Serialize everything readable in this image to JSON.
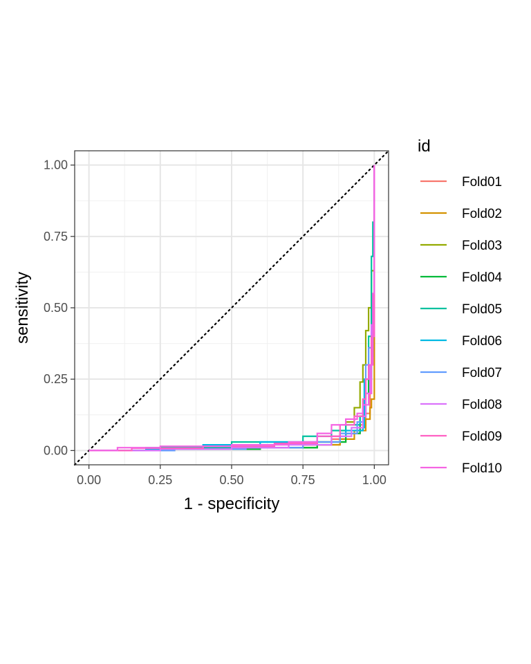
{
  "chart_data": {
    "type": "line",
    "title": "",
    "xlabel": "1 - specificity",
    "ylabel": "sensitivity",
    "xlim": [
      -0.05,
      1.05
    ],
    "ylim": [
      -0.05,
      1.05
    ],
    "x_ticks": [
      "0.00",
      "0.25",
      "0.50",
      "0.75",
      "1.00"
    ],
    "y_ticks": [
      "0.00",
      "0.25",
      "0.50",
      "0.75",
      "1.00"
    ],
    "grid": true,
    "reference_line": {
      "style": "dotted",
      "from": [
        0,
        0
      ],
      "to": [
        1,
        1
      ]
    },
    "legend": {
      "title": "id",
      "position": "right"
    },
    "series": [
      {
        "name": "Fold01",
        "color": "#F8766D",
        "x": [
          0,
          0.2,
          0.5,
          0.75,
          0.85,
          0.9,
          0.95,
          0.97,
          0.985,
          0.99,
          1.0,
          1.0
        ],
        "y": [
          0,
          0.005,
          0.01,
          0.02,
          0.04,
          0.06,
          0.09,
          0.13,
          0.2,
          0.35,
          0.6,
          1.0
        ]
      },
      {
        "name": "Fold02",
        "color": "#D39200",
        "x": [
          0,
          0.25,
          0.5,
          0.75,
          0.88,
          0.93,
          0.97,
          0.985,
          0.99,
          1.0,
          1.0
        ],
        "y": [
          0,
          0.005,
          0.01,
          0.02,
          0.04,
          0.07,
          0.11,
          0.15,
          0.18,
          0.35,
          1.0
        ]
      },
      {
        "name": "Fold03",
        "color": "#93AA00",
        "x": [
          0,
          0.3,
          0.6,
          0.8,
          0.9,
          0.93,
          0.95,
          0.96,
          0.97,
          0.98,
          0.99,
          1.0
        ],
        "y": [
          0,
          0.005,
          0.01,
          0.03,
          0.1,
          0.15,
          0.24,
          0.3,
          0.42,
          0.5,
          0.63,
          1.0
        ]
      },
      {
        "name": "Fold04",
        "color": "#00BA38",
        "x": [
          0,
          0.3,
          0.6,
          0.8,
          0.9,
          0.95,
          0.97,
          0.98,
          0.99,
          1.0
        ],
        "y": [
          0,
          0.005,
          0.01,
          0.03,
          0.06,
          0.12,
          0.2,
          0.3,
          0.5,
          1.0
        ]
      },
      {
        "name": "Fold05",
        "color": "#00C19F",
        "x": [
          0,
          0.2,
          0.5,
          0.75,
          0.85,
          0.9,
          0.95,
          0.97,
          0.98,
          0.99,
          0.995,
          1.0
        ],
        "y": [
          0,
          0.01,
          0.03,
          0.05,
          0.07,
          0.09,
          0.12,
          0.25,
          0.4,
          0.68,
          0.8,
          1.0
        ]
      },
      {
        "name": "Fold06",
        "color": "#00B9E3",
        "x": [
          0,
          0.2,
          0.4,
          0.6,
          0.8,
          0.9,
          0.96,
          0.965,
          0.99,
          0.995,
          1.0
        ],
        "y": [
          0,
          0.005,
          0.02,
          0.03,
          0.05,
          0.07,
          0.08,
          0.25,
          0.33,
          0.4,
          1.0
        ]
      },
      {
        "name": "Fold07",
        "color": "#619CFF",
        "x": [
          0,
          0.3,
          0.55,
          0.75,
          0.88,
          0.94,
          0.96,
          0.97,
          0.98,
          0.99,
          1.0
        ],
        "y": [
          0,
          0.005,
          0.01,
          0.03,
          0.06,
          0.1,
          0.18,
          0.3,
          0.36,
          0.42,
          1.0
        ]
      },
      {
        "name": "Fold08",
        "color": "#DB72FB",
        "x": [
          0,
          0.25,
          0.5,
          0.7,
          0.85,
          0.92,
          0.96,
          0.97,
          0.985,
          0.99,
          1.0
        ],
        "y": [
          0,
          0.005,
          0.01,
          0.02,
          0.05,
          0.08,
          0.12,
          0.2,
          0.3,
          0.44,
          1.0
        ]
      },
      {
        "name": "Fold09",
        "color": "#FF61C3",
        "x": [
          0,
          0.15,
          0.4,
          0.65,
          0.8,
          0.88,
          0.93,
          0.96,
          0.97,
          0.98,
          0.99,
          1.0
        ],
        "y": [
          0,
          0.008,
          0.015,
          0.025,
          0.05,
          0.09,
          0.12,
          0.18,
          0.25,
          0.3,
          0.4,
          1.0
        ]
      },
      {
        "name": "Fold10",
        "color": "#F564E3",
        "x": [
          0,
          0.1,
          0.25,
          0.5,
          0.7,
          0.8,
          0.85,
          0.9,
          0.94,
          0.96,
          0.98,
          0.99,
          0.995,
          1.0
        ],
        "y": [
          0,
          0.01,
          0.015,
          0.02,
          0.03,
          0.06,
          0.09,
          0.11,
          0.13,
          0.16,
          0.2,
          0.3,
          0.55,
          1.0
        ]
      }
    ]
  }
}
